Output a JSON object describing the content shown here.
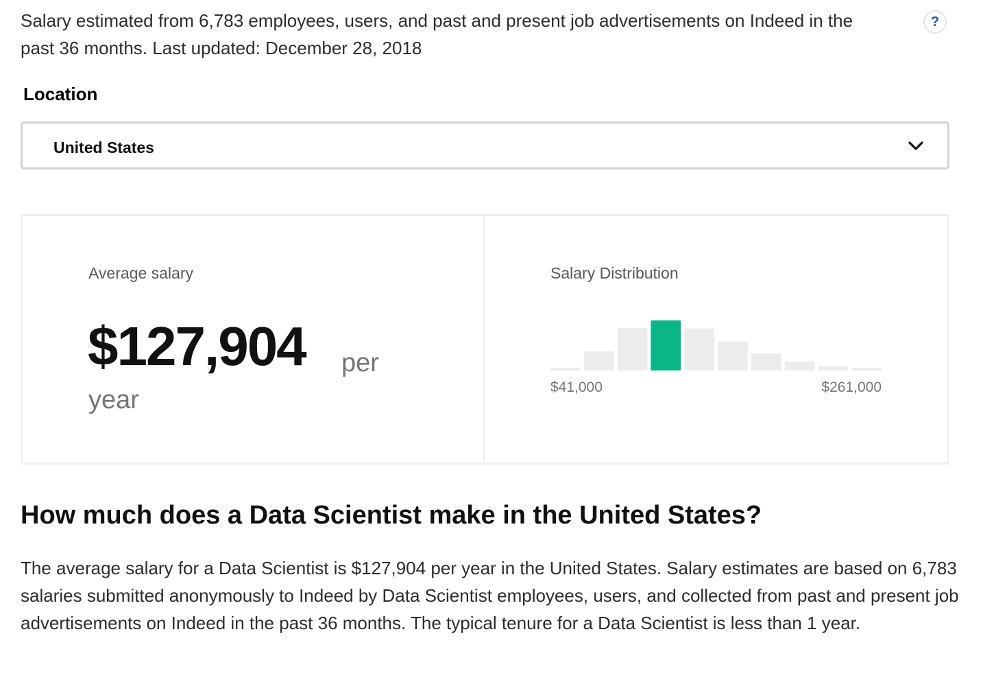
{
  "intro": {
    "text": "Salary estimated from 6,783 employees, users, and past and present job advertisements on Indeed in the past 36 months. Last updated: December 28, 2018",
    "help_label": "?"
  },
  "location": {
    "label": "Location",
    "selected": "United States"
  },
  "average": {
    "title": "Average salary",
    "amount": "$127,904",
    "per": "per",
    "year": "year"
  },
  "distribution": {
    "title": "Salary Distribution",
    "min_label": "$41,000",
    "max_label": "$261,000"
  },
  "chart_data": {
    "type": "bar",
    "title": "Salary Distribution",
    "values": [
      0.05,
      0.38,
      0.85,
      1.0,
      0.84,
      0.58,
      0.34,
      0.18,
      0.09,
      0.05
    ],
    "highlight_index": 3,
    "x_range_labels": [
      "$41,000",
      "$261,000"
    ],
    "colors": {
      "bar": "#ececec",
      "highlight": "#0ab686"
    }
  },
  "article": {
    "heading": "How much does a Data Scientist make in the United States?",
    "body": "The average salary for a Data Scientist is $127,904 per year in the United States. Salary estimates are based on 6,783 salaries submitted anonymously to Indeed by Data Scientist employees, users, and collected from past and present job advertisements on Indeed in the past 36 months. The typical tenure for a Data Scientist is less than 1 year."
  }
}
